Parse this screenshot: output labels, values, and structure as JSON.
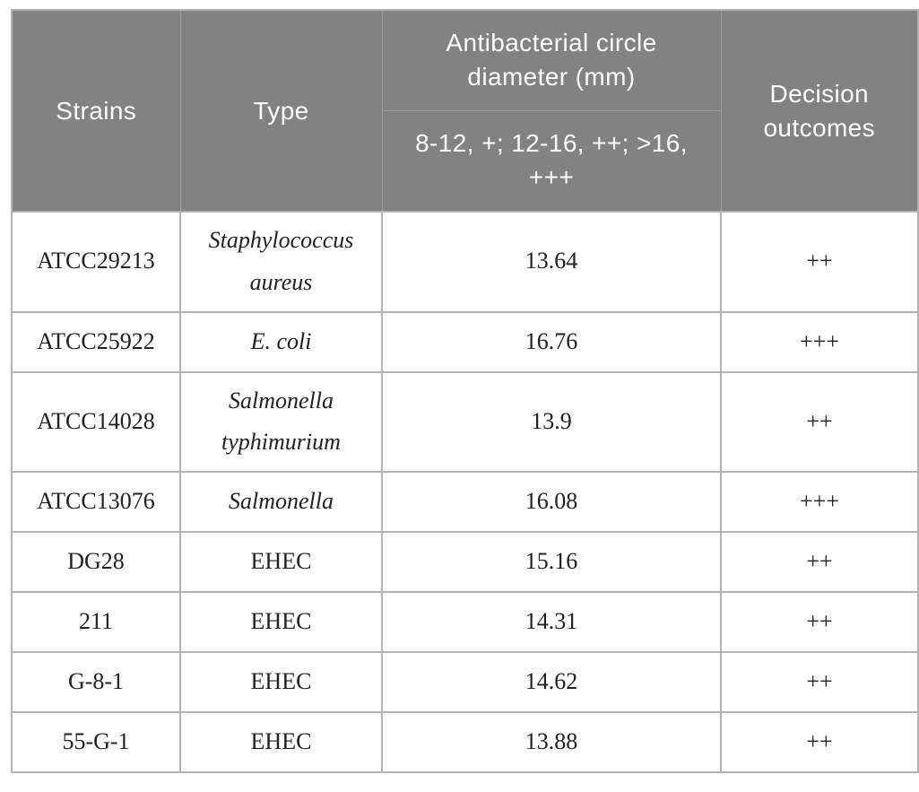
{
  "table": {
    "header": {
      "strains": "Strains",
      "type": "Type",
      "diameter_title": "Antibacterial circle diameter (mm)",
      "diameter_scale": "8-12, +; 12-16, ++; >16, +++",
      "decision": "Decision outcomes"
    },
    "rows": [
      {
        "strain": "ATCC29213",
        "type": "Staphylococcus aureus",
        "type_italic": true,
        "diameter": "13.64",
        "decision": "++"
      },
      {
        "strain": "ATCC25922",
        "type": "E. coli",
        "type_italic": true,
        "diameter": "16.76",
        "decision": "+++"
      },
      {
        "strain": "ATCC14028",
        "type": "Salmonella typhimurium",
        "type_italic": true,
        "diameter": "13.9",
        "decision": "++"
      },
      {
        "strain": "ATCC13076",
        "type": "Salmonella",
        "type_italic": true,
        "diameter": "16.08",
        "decision": "+++"
      },
      {
        "strain": "DG28",
        "type": "EHEC",
        "type_italic": false,
        "diameter": "15.16",
        "decision": "++"
      },
      {
        "strain": "211",
        "type": "EHEC",
        "type_italic": false,
        "diameter": "14.31",
        "decision": "++"
      },
      {
        "strain": "G-8-1",
        "type": "EHEC",
        "type_italic": false,
        "diameter": "14.62",
        "decision": "++"
      },
      {
        "strain": "55-G-1",
        "type": "EHEC",
        "type_italic": false,
        "diameter": "13.88",
        "decision": "++"
      }
    ],
    "colors": {
      "header_bg": "#828282",
      "header_text": "#fcfcfc",
      "header_divider": "#9d9d9d",
      "body_border": "#b3b3b3",
      "body_text": "#212121",
      "page_bg": "#ffffff"
    }
  }
}
